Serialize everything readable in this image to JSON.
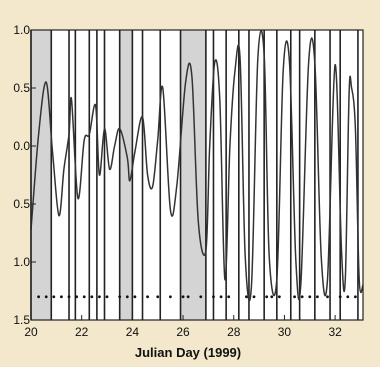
{
  "chart_data": {
    "type": "line",
    "title": "",
    "xlabel": "Julian Day (1999)",
    "ylabel": "",
    "xlim": [
      20,
      33.1
    ],
    "ylim": [
      -1.5,
      1.0
    ],
    "grid": false,
    "x_ticks": [
      20,
      22,
      24,
      26,
      28,
      30,
      32
    ],
    "y_ticks": [
      1.0,
      0.5,
      0.0,
      -0.5,
      -1.0,
      -1.5
    ],
    "y_tick_labels": [
      "1.0",
      "0.5",
      "0.0",
      "0.5",
      "1.0",
      "1.5"
    ],
    "colors": {
      "background": "#f3e8cb",
      "plot_area": "#ffffff",
      "shaded_band": "#d4d4d4",
      "line": "#333333",
      "vertical_line": "#222222",
      "marker": "#111111"
    },
    "shaded_intervals": [
      [
        20.0,
        20.8
      ],
      [
        23.5,
        24.0
      ],
      [
        25.9,
        26.9
      ]
    ],
    "vertical_lines": [
      20.0,
      20.8,
      21.5,
      21.75,
      22.3,
      22.6,
      22.9,
      23.5,
      24.0,
      24.4,
      25.1,
      25.9,
      26.9,
      27.2,
      27.7,
      28.2,
      28.6,
      29.2,
      29.7,
      30.25,
      30.6,
      31.2,
      31.8,
      32.2,
      32.9
    ],
    "markers": {
      "y": -1.3,
      "x": [
        20.3,
        20.6,
        20.9,
        21.2,
        21.5,
        21.8,
        22.1,
        22.4,
        22.7,
        23.0,
        23.5,
        23.8,
        24.1,
        24.6,
        25.0,
        25.5,
        26.0,
        26.2,
        26.7,
        27.2,
        27.5,
        27.8,
        28.5,
        28.8,
        29.3,
        29.5,
        29.8,
        30.4,
        30.7,
        31.0,
        31.3,
        31.7,
        32.2,
        32.5,
        32.8
      ]
    },
    "series": [
      {
        "x": [
          20.0,
          20.3,
          20.6,
          20.85,
          21.1,
          21.3,
          21.5,
          21.6,
          21.85,
          22.1,
          22.3,
          22.55,
          22.7,
          22.9,
          23.1,
          23.3,
          23.5,
          23.8,
          23.9,
          24.1,
          24.4,
          24.6,
          24.8,
          25.0,
          25.2,
          25.5,
          25.75,
          26.1,
          26.35,
          26.6,
          26.9,
          27.05,
          27.25,
          27.45,
          27.65,
          27.85,
          28.05,
          28.25,
          28.45,
          28.7,
          28.95,
          29.2,
          29.4,
          29.7,
          29.95,
          30.2,
          30.45,
          30.65,
          30.95,
          31.2,
          31.45,
          31.7,
          32.0,
          32.25,
          32.4,
          32.55,
          32.65,
          32.8,
          32.95,
          33.1
        ],
        "y": [
          -0.72,
          0.1,
          0.55,
          -0.05,
          -0.6,
          -0.2,
          0.1,
          0.4,
          -0.45,
          0.05,
          0.1,
          0.35,
          -0.25,
          0.15,
          -0.2,
          0.0,
          0.15,
          -0.1,
          -0.3,
          -0.05,
          0.25,
          -0.25,
          -0.35,
          0.05,
          0.5,
          -0.55,
          -0.35,
          0.55,
          0.6,
          -0.65,
          -0.9,
          0.0,
          0.72,
          0.4,
          -1.15,
          0.0,
          0.65,
          0.75,
          -0.95,
          -1.2,
          0.75,
          0.78,
          -0.95,
          -1.15,
          0.65,
          0.72,
          -0.98,
          -1.18,
          0.7,
          0.72,
          -0.95,
          -1.15,
          0.7,
          -0.9,
          -1.15,
          0.45,
          0.5,
          0.15,
          -1.15,
          -1.2
        ]
      }
    ]
  }
}
